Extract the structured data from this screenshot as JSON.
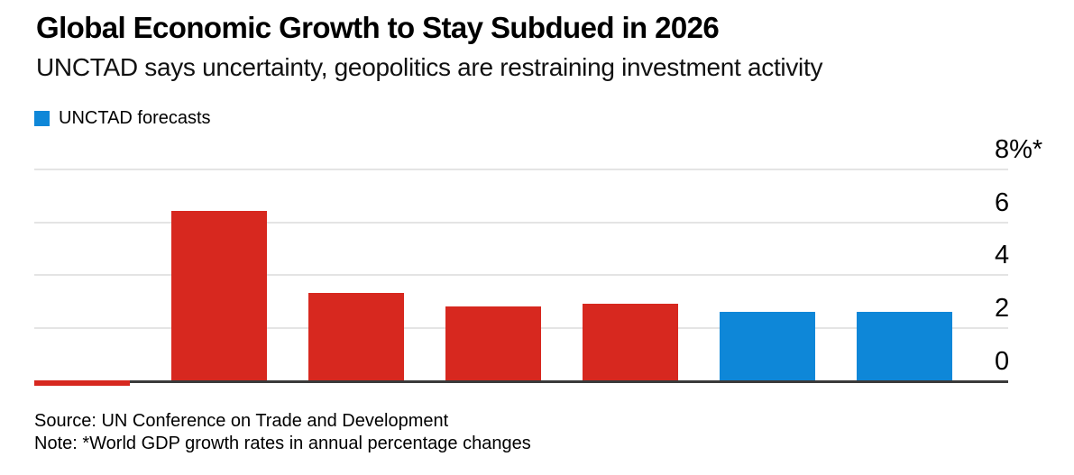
{
  "header": {
    "title": "Global Economic Growth to Stay Subdued in 2026",
    "subtitle": "UNCTAD says uncertainty, geopolitics are restraining investment activity"
  },
  "legend": {
    "items": [
      {
        "label": "UNCTAD forecasts",
        "swatch": "blue-square",
        "color": "#0e87d8"
      }
    ]
  },
  "chart_data": {
    "type": "bar",
    "title": "Global Economic Growth to Stay Subdued in 2026",
    "subtitle": "UNCTAD says uncertainty, geopolitics are restraining investment activity",
    "categories": [
      "",
      "",
      "",
      "",
      "",
      "",
      ""
    ],
    "values": [
      -0.2,
      6.4,
      3.3,
      2.8,
      2.9,
      2.6,
      2.6
    ],
    "bar_colors": [
      "#d7281f",
      "#d7281f",
      "#d7281f",
      "#d7281f",
      "#d7281f",
      "#0e87d8",
      "#0e87d8"
    ],
    "forecast_flags": [
      false,
      false,
      false,
      false,
      false,
      true,
      true
    ],
    "legend_entries": [
      "UNCTAD forecasts"
    ],
    "legend_position": "top-left",
    "xlabel": "",
    "ylabel": "",
    "y_axis_side": "right",
    "yticks": [
      {
        "value": 8,
        "label": "8%*"
      },
      {
        "value": 6,
        "label": "6"
      },
      {
        "value": 4,
        "label": "4"
      },
      {
        "value": 2,
        "label": "2"
      },
      {
        "value": 0,
        "label": "0"
      }
    ],
    "ylim": [
      -0.2,
      8
    ],
    "grid": "horizontal"
  },
  "footer": {
    "source": "Source: UN Conference on Trade and Development",
    "note": "Note: *World GDP growth rates in annual percentage changes"
  },
  "colors": {
    "bar_red": "#d7281f",
    "bar_blue": "#0e87d8",
    "gridline": "#e4e4e4",
    "axis_line": "#3a3a3a",
    "background": "#ffffff",
    "text": "#000000"
  }
}
